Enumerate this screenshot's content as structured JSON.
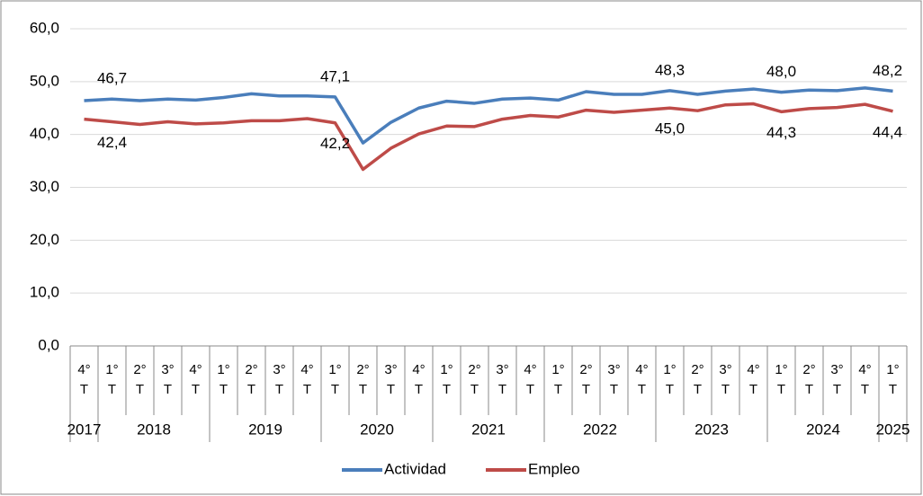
{
  "chart_data": {
    "type": "line",
    "groups": [
      {
        "label": "2017",
        "categories": [
          "4° T"
        ]
      },
      {
        "label": "2018",
        "categories": [
          "1° T",
          "2° T",
          "3° T",
          "4° T"
        ]
      },
      {
        "label": "2019",
        "categories": [
          "1° T",
          "2° T",
          "3° T",
          "4° T"
        ]
      },
      {
        "label": "2020",
        "categories": [
          "1° T",
          "2° T",
          "3° T",
          "4° T"
        ]
      },
      {
        "label": "2021",
        "categories": [
          "1° T",
          "2° T",
          "3° T",
          "4° T"
        ]
      },
      {
        "label": "2022",
        "categories": [
          "1° T",
          "2° T",
          "3° T",
          "4° T"
        ]
      },
      {
        "label": "2023",
        "categories": [
          "1° T",
          "2° T",
          "3° T",
          "4° T"
        ]
      },
      {
        "label": "2024",
        "categories": [
          "1° T",
          "2° T",
          "3° T",
          "4° T"
        ]
      },
      {
        "label": "2025",
        "categories": [
          "1° T"
        ]
      }
    ],
    "series": [
      {
        "name": "Actividad",
        "color": "#4a7ebb",
        "values": [
          46.4,
          46.7,
          46.4,
          46.7,
          46.5,
          47.0,
          47.7,
          47.3,
          47.3,
          47.1,
          38.4,
          42.3,
          45.0,
          46.3,
          45.9,
          46.7,
          46.9,
          46.5,
          48.1,
          47.6,
          47.6,
          48.3,
          47.6,
          48.2,
          48.6,
          48.0,
          48.4,
          48.3,
          48.8,
          48.2
        ],
        "value_labels": [
          null,
          "46,7",
          null,
          null,
          null,
          null,
          null,
          null,
          null,
          "47,1",
          null,
          null,
          null,
          null,
          null,
          null,
          null,
          null,
          null,
          null,
          null,
          "48,3",
          null,
          null,
          null,
          "48,0",
          null,
          null,
          null,
          "48,2"
        ]
      },
      {
        "name": "Empleo",
        "color": "#be4b48",
        "values": [
          42.9,
          42.4,
          41.9,
          42.4,
          42.0,
          42.2,
          42.6,
          42.6,
          43.0,
          42.2,
          33.4,
          37.4,
          40.1,
          41.6,
          41.5,
          42.9,
          43.6,
          43.3,
          44.6,
          44.2,
          44.6,
          45.0,
          44.5,
          45.6,
          45.8,
          44.3,
          44.9,
          45.1,
          45.7,
          44.4
        ],
        "value_labels": [
          null,
          "42,4",
          null,
          null,
          null,
          null,
          null,
          null,
          null,
          "42,2",
          null,
          null,
          null,
          null,
          null,
          null,
          null,
          null,
          null,
          null,
          null,
          "45,0",
          null,
          null,
          null,
          "44,3",
          null,
          null,
          null,
          "44,4"
        ]
      }
    ],
    "ylim": [
      0,
      60
    ],
    "yticks": [
      {
        "value": 0,
        "label": "0,0"
      },
      {
        "value": 10,
        "label": "10,0"
      },
      {
        "value": 20,
        "label": "20,0"
      },
      {
        "value": 30,
        "label": "30,0"
      },
      {
        "value": 40,
        "label": "40,0"
      },
      {
        "value": 50,
        "label": "50,0"
      },
      {
        "value": 60,
        "label": "60,0"
      }
    ],
    "grid": true,
    "legend": "bottom"
  }
}
